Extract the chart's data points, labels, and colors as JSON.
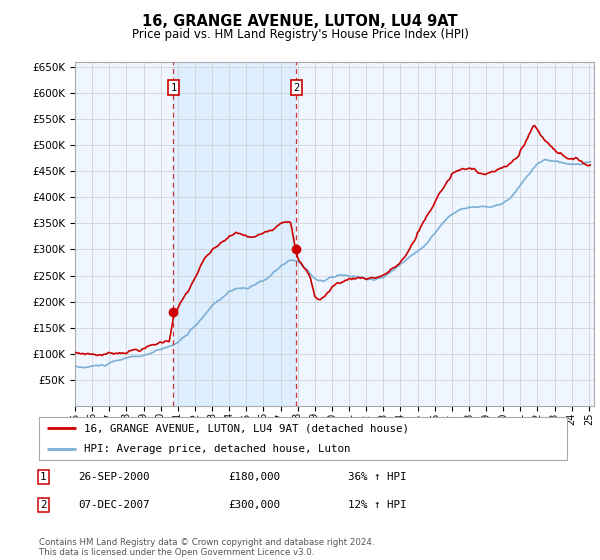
{
  "title": "16, GRANGE AVENUE, LUTON, LU4 9AT",
  "subtitle": "Price paid vs. HM Land Registry's House Price Index (HPI)",
  "legend_line1": "16, GRANGE AVENUE, LUTON, LU4 9AT (detached house)",
  "legend_line2": "HPI: Average price, detached house, Luton",
  "footer": "Contains HM Land Registry data © Crown copyright and database right 2024.\nThis data is licensed under the Open Government Licence v3.0.",
  "annotation1_label": "1",
  "annotation1_date": "26-SEP-2000",
  "annotation1_price": "£180,000",
  "annotation1_hpi": "36% ↑ HPI",
  "annotation2_label": "2",
  "annotation2_date": "07-DEC-2007",
  "annotation2_price": "£300,000",
  "annotation2_hpi": "12% ↑ HPI",
  "house_color": "#cc0000",
  "hpi_color": "#7bafd4",
  "shade_color": "#ddeeff",
  "background_color": "#f0f6ff",
  "grid_color": "#cccccc",
  "ylim": [
    0,
    660000
  ],
  "yticks": [
    50000,
    100000,
    150000,
    200000,
    250000,
    300000,
    350000,
    400000,
    450000,
    500000,
    550000,
    600000,
    650000
  ],
  "sale1_x": 2000.75,
  "sale1_y": 180000,
  "sale2_x": 2007.92,
  "sale2_y": 300000,
  "xmin": 1995.0,
  "xmax": 2025.3
}
